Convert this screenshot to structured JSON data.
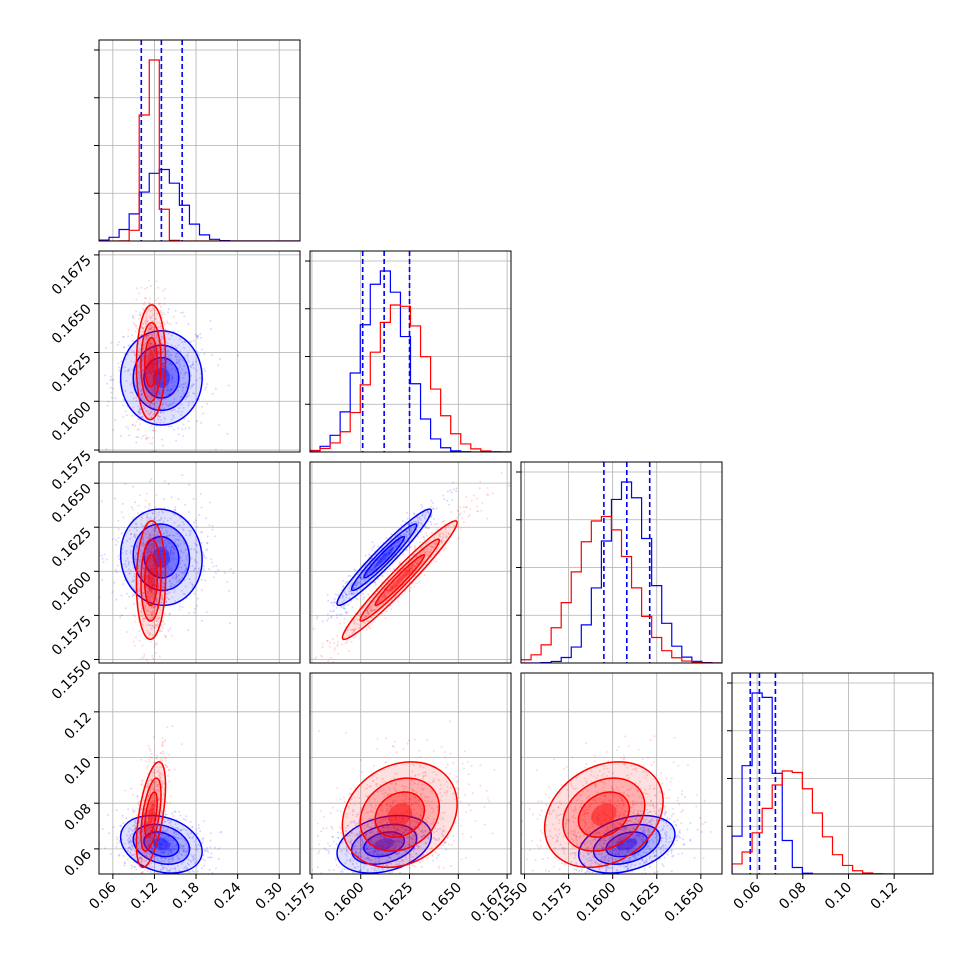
{
  "chart_data": {
    "type": "corner",
    "title": "",
    "parameters": [
      {
        "range": [
          0.04,
          0.33
        ],
        "ticks": [
          "0.06",
          "0.12",
          "0.18",
          "0.24",
          "0.30"
        ],
        "tick_values": [
          0.06,
          0.12,
          0.18,
          0.24,
          0.3
        ]
      },
      {
        "range": [
          0.1574,
          0.1677
        ],
        "ticks": [
          "0.1575",
          "0.1600",
          "0.1625",
          "0.1650",
          "0.1675"
        ],
        "tick_values": [
          0.1575,
          0.16,
          0.1625,
          0.165,
          0.1675
        ]
      },
      {
        "range": [
          0.1548,
          0.1662
        ],
        "ticks": [
          "0.1550",
          "0.1575",
          "0.1600",
          "0.1625",
          "0.1650"
        ],
        "tick_values": [
          0.155,
          0.1575,
          0.16,
          0.1625,
          0.165
        ]
      },
      {
        "range": [
          0.049,
          0.137
        ],
        "ticks": [
          "0.06",
          "0.08",
          "0.10",
          "0.12"
        ],
        "tick_values": [
          0.06,
          0.08,
          0.1,
          0.12
        ]
      }
    ],
    "series": [
      {
        "color": "#0000ff",
        "mean": [
          0.13,
          0.1612,
          0.1608,
          0.062
        ],
        "std": [
          0.028,
          0.00115,
          0.0013,
          0.006
        ],
        "quantiles": [
          [
            0.101,
            0.13,
            0.16
          ],
          [
            0.1601,
            0.1612,
            0.1625
          ],
          [
            0.1595,
            0.1608,
            0.1621
          ],
          [
            0.057,
            0.061,
            0.068
          ]
        ],
        "corr": [
          [
            1,
            0.0,
            -0.05,
            -0.25
          ],
          [
            0.0,
            1,
            0.96,
            0.3
          ],
          [
            -0.05,
            0.96,
            1,
            0.35
          ],
          [
            -0.25,
            0.3,
            0.35,
            1
          ]
        ],
        "peak_scale": 0.55
      },
      {
        "color": "#ff0000",
        "mean": [
          0.115,
          0.162,
          0.1595,
          0.075
        ],
        "std": [
          0.01,
          0.0014,
          0.0016,
          0.011
        ],
        "quantiles": null,
        "corr": [
          [
            1,
            0.05,
            0.05,
            0.55
          ],
          [
            0.05,
            1,
            0.97,
            0.2
          ],
          [
            0.05,
            0.97,
            1,
            0.25
          ],
          [
            0.55,
            0.2,
            0.25,
            1
          ]
        ],
        "peak_scale": 1.0
      }
    ],
    "grid": true
  }
}
